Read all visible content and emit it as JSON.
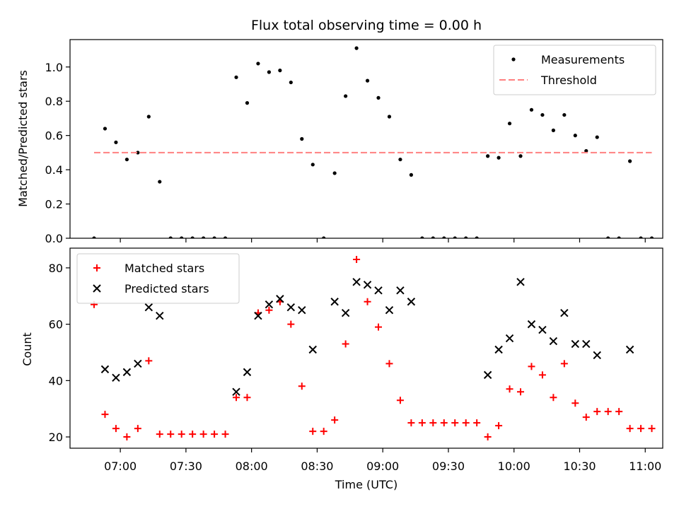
{
  "chart_data": [
    {
      "type": "scatter",
      "title": "Flux total observing time = 0.00 h",
      "xlabel": "",
      "ylabel": "Matched/Predicted stars",
      "ylim": [
        0,
        1.16
      ],
      "yticks": [
        0.0,
        0.2,
        0.4,
        0.6,
        0.8,
        1.0
      ],
      "ytick_labels": [
        "0.0",
        "0.2",
        "0.4",
        "0.6",
        "0.8",
        "1.0"
      ],
      "xlim": [
        "06:37",
        "11:08"
      ],
      "legend_position": "upper right",
      "series": [
        {
          "name": "Measurements",
          "marker": "dot",
          "color": "#000000",
          "x": [
            "06:48",
            "06:53",
            "06:58",
            "07:03",
            "07:08",
            "07:13",
            "07:18",
            "07:23",
            "07:28",
            "07:33",
            "07:38",
            "07:43",
            "07:48",
            "07:53",
            "07:58",
            "08:03",
            "08:08",
            "08:13",
            "08:18",
            "08:23",
            "08:28",
            "08:33",
            "08:38",
            "08:43",
            "08:48",
            "08:53",
            "08:58",
            "09:03",
            "09:08",
            "09:13",
            "09:18",
            "09:23",
            "09:28",
            "09:33",
            "09:38",
            "09:43",
            "09:48",
            "09:53",
            "09:58",
            "10:03",
            "10:08",
            "10:13",
            "10:18",
            "10:23",
            "10:28",
            "10:33",
            "10:38",
            "10:43",
            "10:48",
            "10:53",
            "10:58",
            "11:03"
          ],
          "y": [
            0.0,
            0.64,
            0.56,
            0.46,
            0.5,
            0.71,
            0.33,
            0.0,
            0.0,
            0.0,
            0.0,
            0.0,
            0.0,
            0.94,
            0.79,
            1.02,
            0.97,
            0.98,
            0.91,
            0.58,
            0.43,
            0.0,
            0.38,
            0.83,
            1.11,
            0.92,
            0.82,
            0.71,
            0.46,
            0.37,
            0.0,
            0.0,
            0.0,
            0.0,
            0.0,
            0.0,
            0.48,
            0.47,
            0.67,
            0.48,
            0.75,
            0.72,
            0.63,
            0.72,
            0.6,
            0.51,
            0.59,
            0.0,
            0.0,
            0.45,
            0.0,
            0.0
          ]
        },
        {
          "name": "Threshold",
          "marker": "dashed-line",
          "color": "#ff8080",
          "x": [
            "06:48",
            "11:03"
          ],
          "y": [
            0.5,
            0.5
          ]
        }
      ]
    },
    {
      "type": "scatter",
      "title": "",
      "xlabel": "Time (UTC)",
      "ylabel": "Count",
      "ylim": [
        16,
        87
      ],
      "yticks": [
        20,
        40,
        60,
        80
      ],
      "ytick_labels": [
        "20",
        "40",
        "60",
        "80"
      ],
      "xlim": [
        "06:37",
        "11:08"
      ],
      "xticks": [
        "07:00",
        "07:30",
        "08:00",
        "08:30",
        "09:00",
        "09:30",
        "10:00",
        "10:30",
        "11:00"
      ],
      "legend_position": "upper left",
      "series": [
        {
          "name": "Matched stars",
          "marker": "plus",
          "color": "#ff0000",
          "x": [
            "06:48",
            "06:53",
            "06:58",
            "07:03",
            "07:08",
            "07:13",
            "07:18",
            "07:23",
            "07:28",
            "07:33",
            "07:38",
            "07:43",
            "07:48",
            "07:53",
            "07:58",
            "08:03",
            "08:08",
            "08:13",
            "08:18",
            "08:23",
            "08:28",
            "08:33",
            "08:38",
            "08:43",
            "08:48",
            "08:53",
            "08:58",
            "09:03",
            "09:08",
            "09:13",
            "09:18",
            "09:23",
            "09:28",
            "09:33",
            "09:38",
            "09:43",
            "09:48",
            "09:53",
            "09:58",
            "10:03",
            "10:08",
            "10:13",
            "10:18",
            "10:23",
            "10:28",
            "10:33",
            "10:38",
            "10:43",
            "10:48",
            "10:53",
            "10:58",
            "11:03"
          ],
          "y": [
            67,
            28,
            23,
            20,
            23,
            47,
            21,
            21,
            21,
            21,
            21,
            21,
            21,
            34,
            34,
            64,
            65,
            68,
            60,
            38,
            22,
            22,
            26,
            53,
            83,
            68,
            59,
            46,
            33,
            25,
            25,
            25,
            25,
            25,
            25,
            25,
            20,
            24,
            37,
            36,
            45,
            42,
            34,
            46,
            32,
            27,
            29,
            29,
            29,
            23,
            23,
            23
          ]
        },
        {
          "name": "Predicted stars",
          "marker": "x",
          "color": "#000000",
          "x": [
            "06:53",
            "06:58",
            "07:03",
            "07:08",
            "07:13",
            "07:18",
            "07:53",
            "07:58",
            "08:03",
            "08:08",
            "08:13",
            "08:18",
            "08:23",
            "08:28",
            "08:38",
            "08:43",
            "08:48",
            "08:53",
            "08:58",
            "09:03",
            "09:08",
            "09:13",
            "09:48",
            "09:53",
            "09:58",
            "10:03",
            "10:08",
            "10:13",
            "10:18",
            "10:23",
            "10:28",
            "10:33",
            "10:38",
            "10:53"
          ],
          "y": [
            44,
            41,
            43,
            46,
            66,
            63,
            36,
            43,
            63,
            67,
            69,
            66,
            65,
            51,
            68,
            64,
            75,
            74,
            72,
            65,
            72,
            68,
            42,
            51,
            55,
            75,
            60,
            58,
            54,
            64,
            53,
            53,
            49,
            51
          ]
        }
      ]
    }
  ]
}
